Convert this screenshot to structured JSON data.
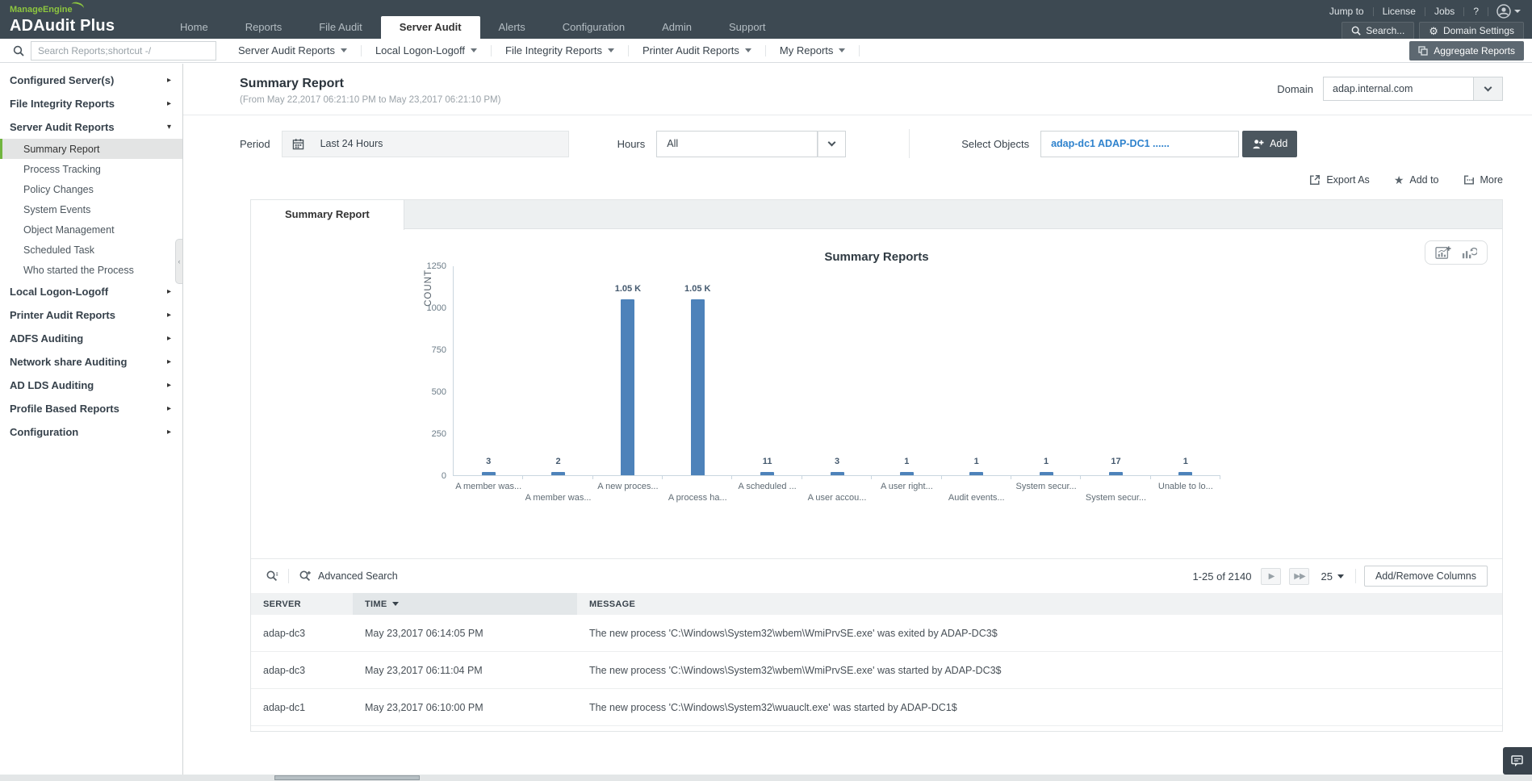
{
  "colors": {
    "header": "#3d4952",
    "accent_green": "#71b53f",
    "bar_blue": "#4d82ba",
    "link_blue": "#2e82cd"
  },
  "brand": {
    "logo_small": "ManageEngine",
    "app_name": "ADAudit Plus"
  },
  "topbar": {
    "quick_links": [
      "Jump to",
      "License",
      "Jobs",
      "?"
    ],
    "search_button": "Search...",
    "domain_settings_button": "Domain Settings",
    "tabs": [
      {
        "label": "Home"
      },
      {
        "label": "Reports"
      },
      {
        "label": "File Audit"
      },
      {
        "label": "Server Audit",
        "active": true
      },
      {
        "label": "Alerts"
      },
      {
        "label": "Configuration"
      },
      {
        "label": "Admin"
      },
      {
        "label": "Support"
      }
    ]
  },
  "toolbar": {
    "search_placeholder": "Search Reports;shortcut -/",
    "menus": [
      "Server Audit Reports",
      "Local Logon-Logoff",
      "File Integrity Reports",
      "Printer Audit Reports",
      "My Reports"
    ],
    "aggregate_reports": "Aggregate Reports"
  },
  "sidebar": {
    "items": [
      {
        "label": "Configured Server(s)",
        "type": "group",
        "chevron": "▸"
      },
      {
        "label": "File Integrity Reports",
        "type": "group",
        "chevron": "▸"
      },
      {
        "label": "Server Audit Reports",
        "type": "group",
        "chevron": "▾"
      },
      {
        "label": "Summary Report",
        "type": "child",
        "active": true
      },
      {
        "label": "Process Tracking",
        "type": "child"
      },
      {
        "label": "Policy Changes",
        "type": "child"
      },
      {
        "label": "System Events",
        "type": "child"
      },
      {
        "label": "Object Management",
        "type": "child"
      },
      {
        "label": "Scheduled Task",
        "type": "child"
      },
      {
        "label": "Who started the Process",
        "type": "child"
      },
      {
        "label": "Local Logon-Logoff",
        "type": "group",
        "chevron": "▸"
      },
      {
        "label": "Printer Audit Reports",
        "type": "group",
        "chevron": "▸"
      },
      {
        "label": "ADFS Auditing",
        "type": "group",
        "chevron": "▸"
      },
      {
        "label": "Network share Auditing",
        "type": "group",
        "chevron": "▸"
      },
      {
        "label": "AD LDS Auditing",
        "type": "group",
        "chevron": "▸"
      },
      {
        "label": "Profile Based Reports",
        "type": "group",
        "chevron": "▸"
      },
      {
        "label": "Configuration",
        "type": "group",
        "chevron": "▸"
      }
    ]
  },
  "report": {
    "title": "Summary Report",
    "subtitle": "(From May 22,2017 06:21:10 PM to May 23,2017 06:21:10 PM)",
    "domain_label": "Domain",
    "domain_value": "adap.internal.com",
    "period_label": "Period",
    "period_value": "Last 24 Hours",
    "hours_label": "Hours",
    "hours_value": "All",
    "select_objects_label": "Select Objects",
    "select_objects_value": "adap-dc1 ADAP-DC1 ......",
    "add_button": "Add",
    "actions": {
      "export_as": "Export As",
      "add_to": "Add to",
      "more": "More"
    },
    "tab": "Summary Report"
  },
  "chart_data": {
    "type": "bar",
    "title": "Summary Reports",
    "ylabel": "COUNT",
    "ylim": [
      0,
      1250
    ],
    "yticks": [
      0,
      250,
      500,
      750,
      1000,
      1250
    ],
    "grid": false,
    "bar_color": "#4d82ba",
    "categories": [
      "A member was...",
      "A member was...",
      "A new proces...",
      "A process ha...",
      "A scheduled ...",
      "A user accou...",
      "A user right...",
      "Audit events...",
      "System secur...",
      "System secur...",
      "Unable to lo..."
    ],
    "values": [
      3,
      2,
      1050,
      1050,
      11,
      3,
      1,
      1,
      1,
      17,
      1
    ],
    "value_labels": [
      "3",
      "2",
      "1.05 K",
      "1.05 K",
      "11",
      "3",
      "1",
      "1",
      "1",
      "17",
      "1"
    ]
  },
  "table": {
    "advanced_search_label": "Advanced Search",
    "pagination": {
      "range": "1-25 of 2140",
      "page_size": "25"
    },
    "add_remove_columns": "Add/Remove Columns",
    "columns": {
      "server": "SERVER",
      "time": "TIME",
      "message": "MESSAGE"
    },
    "rows": [
      {
        "server": "adap-dc3",
        "time": "May 23,2017 06:14:05 PM",
        "message": "The new process 'C:\\Windows\\System32\\wbem\\WmiPrvSE.exe' was exited by ADAP-DC3$"
      },
      {
        "server": "adap-dc3",
        "time": "May 23,2017 06:11:04 PM",
        "message": "The new process 'C:\\Windows\\System32\\wbem\\WmiPrvSE.exe' was started by ADAP-DC3$"
      },
      {
        "server": "adap-dc1",
        "time": "May 23,2017 06:10:00 PM",
        "message": "The new process 'C:\\Windows\\System32\\wuauclt.exe' was started by ADAP-DC1$"
      }
    ]
  }
}
